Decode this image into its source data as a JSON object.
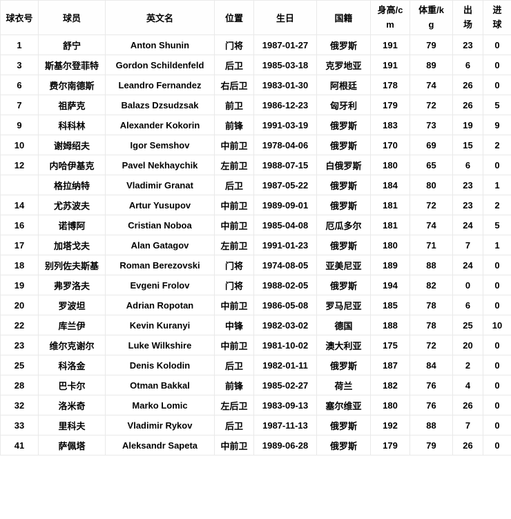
{
  "colors": {
    "border": "#e9e9e9",
    "text": "#000000",
    "background": "#ffffff"
  },
  "table": {
    "headers": [
      "球衣号",
      "球员",
      "英文名",
      "位置",
      "生日",
      "国籍",
      "身高/cm",
      "体重/kg",
      "出场",
      "进球"
    ],
    "rows": [
      [
        "1",
        "舒宁",
        "Anton Shunin",
        "门将",
        "1987-01-27",
        "俄罗斯",
        "191",
        "79",
        "23",
        "0"
      ],
      [
        "3",
        "斯基尔登菲特",
        "Gordon Schildenfeld",
        "后卫",
        "1985-03-18",
        "克罗地亚",
        "191",
        "89",
        "6",
        "0"
      ],
      [
        "6",
        "费尔南德斯",
        "Leandro Fernandez",
        "右后卫",
        "1983-01-30",
        "阿根廷",
        "178",
        "74",
        "26",
        "0"
      ],
      [
        "7",
        "祖萨克",
        "Balazs Dzsudzsak",
        "前卫",
        "1986-12-23",
        "匈牙利",
        "179",
        "72",
        "26",
        "5"
      ],
      [
        "9",
        "科科林",
        "Alexander Kokorin",
        "前锋",
        "1991-03-19",
        "俄罗斯",
        "183",
        "73",
        "19",
        "9"
      ],
      [
        "10",
        "谢姆绍夫",
        "Igor Semshov",
        "中前卫",
        "1978-04-06",
        "俄罗斯",
        "170",
        "69",
        "15",
        "2"
      ],
      [
        "12",
        "内哈伊基克",
        "Pavel Nekhaychik",
        "左前卫",
        "1988-07-15",
        "白俄罗斯",
        "180",
        "65",
        "6",
        "0"
      ],
      [
        "",
        "格拉纳特",
        "Vladimir Granat",
        "后卫",
        "1987-05-22",
        "俄罗斯",
        "184",
        "80",
        "23",
        "1"
      ],
      [
        "14",
        "尤苏波夫",
        "Artur Yusupov",
        "中前卫",
        "1989-09-01",
        "俄罗斯",
        "181",
        "72",
        "23",
        "2"
      ],
      [
        "16",
        "诺博阿",
        "Cristian Noboa",
        "中前卫",
        "1985-04-08",
        "厄瓜多尔",
        "181",
        "74",
        "24",
        "5"
      ],
      [
        "17",
        "加塔戈夫",
        "Alan Gatagov",
        "左前卫",
        "1991-01-23",
        "俄罗斯",
        "180",
        "71",
        "7",
        "1"
      ],
      [
        "18",
        "别列佐夫斯基",
        "Roman Berezovski",
        "门将",
        "1974-08-05",
        "亚美尼亚",
        "189",
        "88",
        "24",
        "0"
      ],
      [
        "19",
        "弗罗洛夫",
        "Evgeni Frolov",
        "门将",
        "1988-02-05",
        "俄罗斯",
        "194",
        "82",
        "0",
        "0"
      ],
      [
        "20",
        "罗波坦",
        "Adrian Ropotan",
        "中前卫",
        "1986-05-08",
        "罗马尼亚",
        "185",
        "78",
        "6",
        "0"
      ],
      [
        "22",
        "库兰伊",
        "Kevin Kuranyi",
        "中锋",
        "1982-03-02",
        "德国",
        "188",
        "78",
        "25",
        "10"
      ],
      [
        "23",
        "维尔克谢尔",
        "Luke Wilkshire",
        "中前卫",
        "1981-10-02",
        "澳大利亚",
        "175",
        "72",
        "20",
        "0"
      ],
      [
        "25",
        "科洛金",
        "Denis Kolodin",
        "后卫",
        "1982-01-11",
        "俄罗斯",
        "187",
        "84",
        "2",
        "0"
      ],
      [
        "28",
        "巴卡尔",
        "Otman Bakkal",
        "前锋",
        "1985-02-27",
        "荷兰",
        "182",
        "76",
        "4",
        "0"
      ],
      [
        "32",
        "洛米奇",
        "Marko Lomic",
        "左后卫",
        "1983-09-13",
        "塞尔维亚",
        "180",
        "76",
        "26",
        "0"
      ],
      [
        "33",
        "里科夫",
        "Vladimir Rykov",
        "后卫",
        "1987-11-13",
        "俄罗斯",
        "192",
        "88",
        "7",
        "0"
      ],
      [
        "41",
        "萨佩塔",
        "Aleksandr Sapeta",
        "中前卫",
        "1989-06-28",
        "俄罗斯",
        "179",
        "79",
        "26",
        "0"
      ]
    ]
  }
}
